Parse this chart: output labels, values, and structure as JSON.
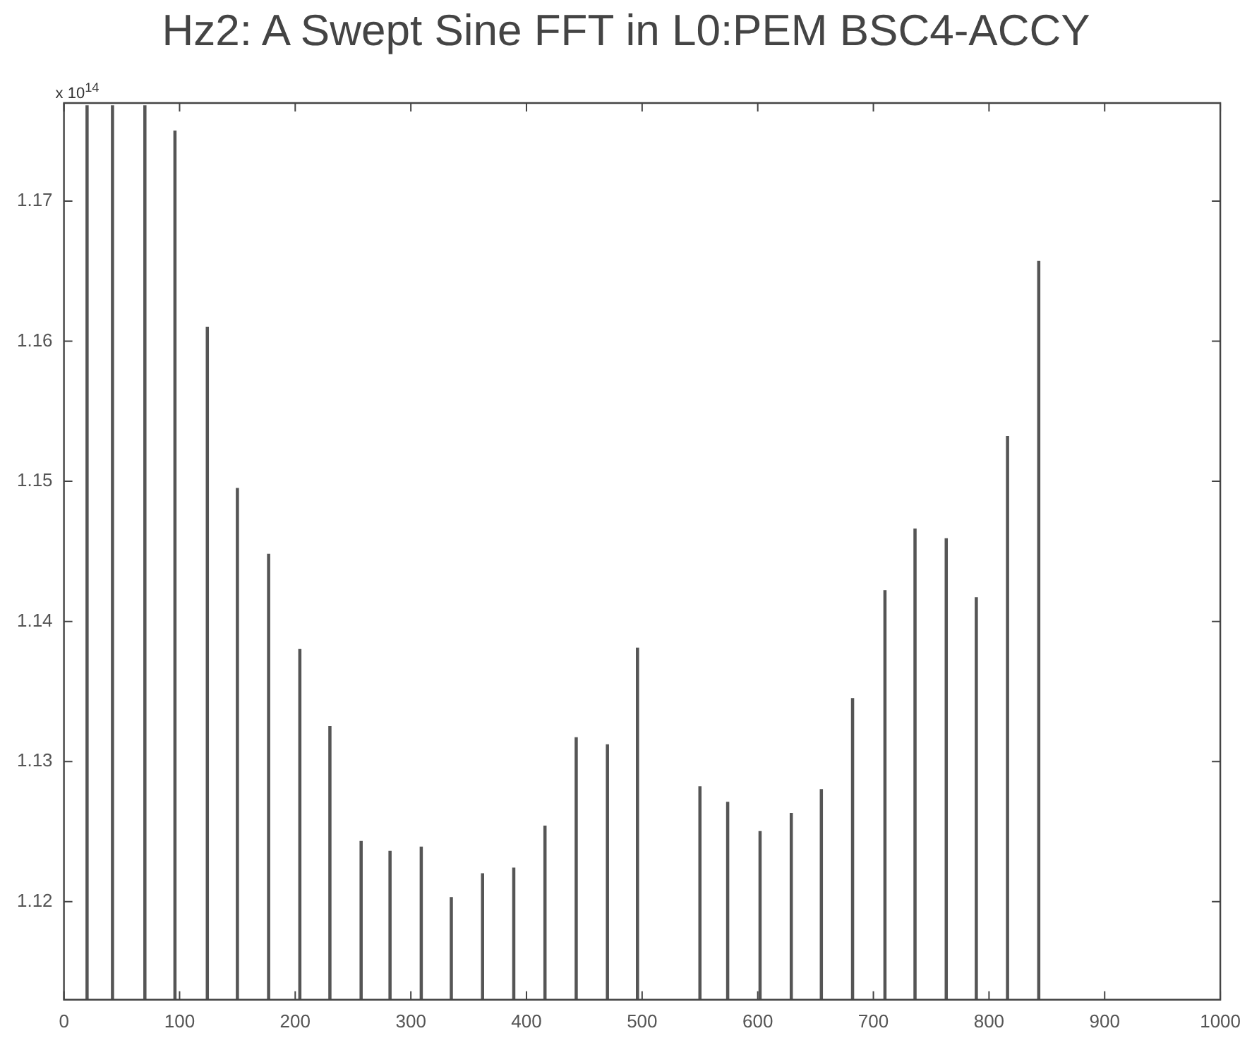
{
  "chart_data": {
    "type": "bar",
    "title": "Hz2: A Swept Sine FFT in L0:PEM BSC4-ACCY",
    "annotations": [
      "x 10$^{14}$"
    ],
    "x": [
      20,
      42,
      70,
      96,
      124,
      150,
      177,
      204,
      230,
      257,
      282,
      309,
      335,
      362,
      389,
      416,
      443,
      470,
      496,
      550,
      574,
      602,
      629,
      655,
      682,
      710,
      736,
      763,
      789,
      816,
      843
    ],
    "values": [
      1.1768,
      1.1768,
      1.1768,
      1.175,
      1.161,
      1.1495,
      1.1448,
      1.138,
      1.1325,
      1.1243,
      1.1236,
      1.1239,
      1.1203,
      1.122,
      1.1224,
      1.1254,
      1.1317,
      1.1312,
      1.1381,
      1.1282,
      1.1271,
      1.125,
      1.1263,
      1.128,
      1.1345,
      1.1422,
      1.1466,
      1.1459,
      1.1417,
      1.1532,
      1.1657
    ],
    "color": "#555555",
    "xlim": [
      0,
      1000
    ],
    "xticks": [
      0,
      100,
      200,
      300,
      400,
      500,
      600,
      700,
      800,
      900,
      1000
    ],
    "ylim": [
      1.113,
      1.177
    ],
    "yticks": [
      1.12,
      1.13,
      1.14,
      1.15,
      1.16,
      1.17
    ],
    "grid": false,
    "legend": false
  }
}
